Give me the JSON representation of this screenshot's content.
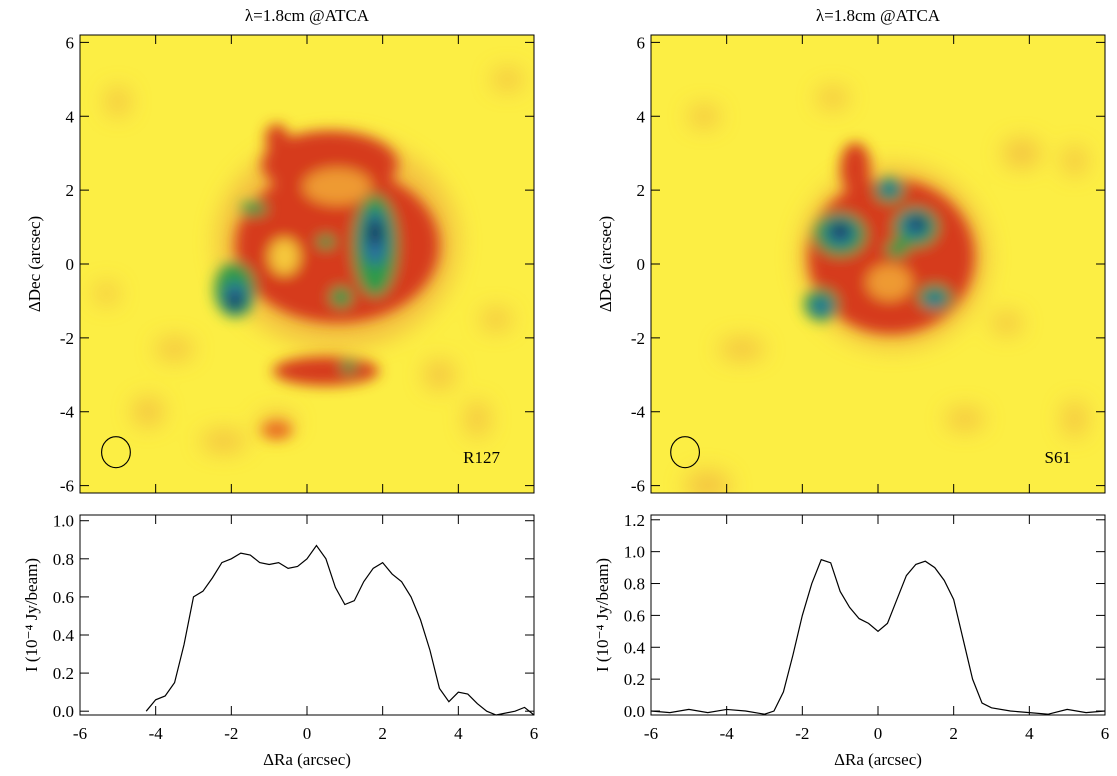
{
  "chart_data": [
    {
      "type": "image",
      "title": "λ=1.8cm @ATCA",
      "ylabel": "ΔDec (arcsec)",
      "label": "R127",
      "xlim": [
        -6,
        6
      ],
      "ylim": [
        -6.2,
        6.2
      ],
      "xticks": [
        -6,
        -4,
        -2,
        0,
        2,
        4,
        6
      ],
      "yticks": [
        -6,
        -4,
        -2,
        0,
        2,
        4,
        6
      ]
    },
    {
      "type": "image",
      "title": "λ=1.8cm @ATCA",
      "ylabel": "ΔDec (arcsec)",
      "label": "S61",
      "xlim": [
        -6,
        6
      ],
      "ylim": [
        -6.2,
        6.2
      ],
      "xticks": [
        -6,
        -4,
        -2,
        0,
        2,
        4,
        6
      ],
      "yticks": [
        -6,
        -4,
        -2,
        0,
        2,
        4,
        6
      ]
    },
    {
      "type": "line",
      "xlabel": "ΔRa (arcsec)",
      "ylabel": "I (10⁻⁴ Jy/beam)",
      "color": "#000000",
      "x": [
        -4.25,
        -4.0,
        -3.75,
        -3.5,
        -3.25,
        -3.0,
        -2.75,
        -2.5,
        -2.25,
        -2.0,
        -1.75,
        -1.5,
        -1.25,
        -1.0,
        -0.75,
        -0.5,
        -0.25,
        0,
        0.25,
        0.5,
        0.75,
        1.0,
        1.25,
        1.5,
        1.75,
        2.0,
        2.25,
        2.5,
        2.75,
        3.0,
        3.25,
        3.5,
        3.75,
        4.0,
        4.25,
        4.5,
        4.75,
        5.0,
        5.5,
        5.75,
        6
      ],
      "values": [
        0.0,
        0.06,
        0.08,
        0.15,
        0.35,
        0.6,
        0.63,
        0.7,
        0.78,
        0.8,
        0.83,
        0.82,
        0.78,
        0.77,
        0.78,
        0.75,
        0.76,
        0.8,
        0.87,
        0.8,
        0.65,
        0.56,
        0.58,
        0.68,
        0.75,
        0.78,
        0.72,
        0.68,
        0.6,
        0.48,
        0.32,
        0.12,
        0.05,
        0.1,
        0.09,
        0.04,
        0.0,
        -0.02,
        0.0,
        0.02,
        -0.02
      ],
      "xlim": [
        -6,
        6
      ],
      "ylim": [
        -0.02,
        1.03
      ],
      "xticks": [
        -6,
        -4,
        -2,
        0,
        2,
        4,
        6
      ],
      "yticks": [
        {
          "value": 0,
          "label": "0.0"
        },
        {
          "value": 0.2,
          "label": "0.2"
        },
        {
          "value": 0.4,
          "label": "0.4"
        },
        {
          "value": 0.6,
          "label": "0.6"
        },
        {
          "value": 0.8,
          "label": "0.8"
        },
        {
          "value": 1,
          "label": "1.0"
        }
      ]
    },
    {
      "type": "line",
      "xlabel": "ΔRa (arcsec)",
      "ylabel": "I (10⁻⁴ Jy/beam)",
      "color": "#000000",
      "x": [
        -6,
        -5.5,
        -5.0,
        -4.5,
        -4.0,
        -3.5,
        -3.0,
        -2.75,
        -2.5,
        -2.25,
        -2.0,
        -1.75,
        -1.5,
        -1.25,
        -1.0,
        -0.75,
        -0.5,
        -0.25,
        0,
        0.25,
        0.5,
        0.75,
        1.0,
        1.25,
        1.5,
        1.75,
        2.0,
        2.25,
        2.5,
        2.75,
        3.0,
        3.5,
        4.0,
        4.5,
        5.0,
        5.5,
        6.0
      ],
      "values": [
        0.0,
        -0.01,
        0.01,
        -0.01,
        0.01,
        0.0,
        -0.02,
        0.0,
        0.12,
        0.35,
        0.6,
        0.8,
        0.95,
        0.93,
        0.75,
        0.65,
        0.58,
        0.55,
        0.5,
        0.55,
        0.7,
        0.85,
        0.92,
        0.94,
        0.9,
        0.82,
        0.7,
        0.45,
        0.2,
        0.05,
        0.02,
        0.0,
        -0.01,
        -0.02,
        0.01,
        -0.01,
        0.0
      ],
      "xlim": [
        -6,
        6
      ],
      "ylim": [
        -0.025,
        1.23
      ],
      "xticks": [
        -6,
        -4,
        -2,
        0,
        2,
        4,
        6
      ],
      "yticks": [
        {
          "value": 0,
          "label": "0.0"
        },
        {
          "value": 0.2,
          "label": "0.2"
        },
        {
          "value": 0.4,
          "label": "0.4"
        },
        {
          "value": 0.6,
          "label": "0.6"
        },
        {
          "value": 0.8,
          "label": "0.8"
        },
        {
          "value": 1,
          "label": "1.0"
        },
        {
          "value": 1.2,
          "label": "1.2"
        }
      ]
    }
  ]
}
